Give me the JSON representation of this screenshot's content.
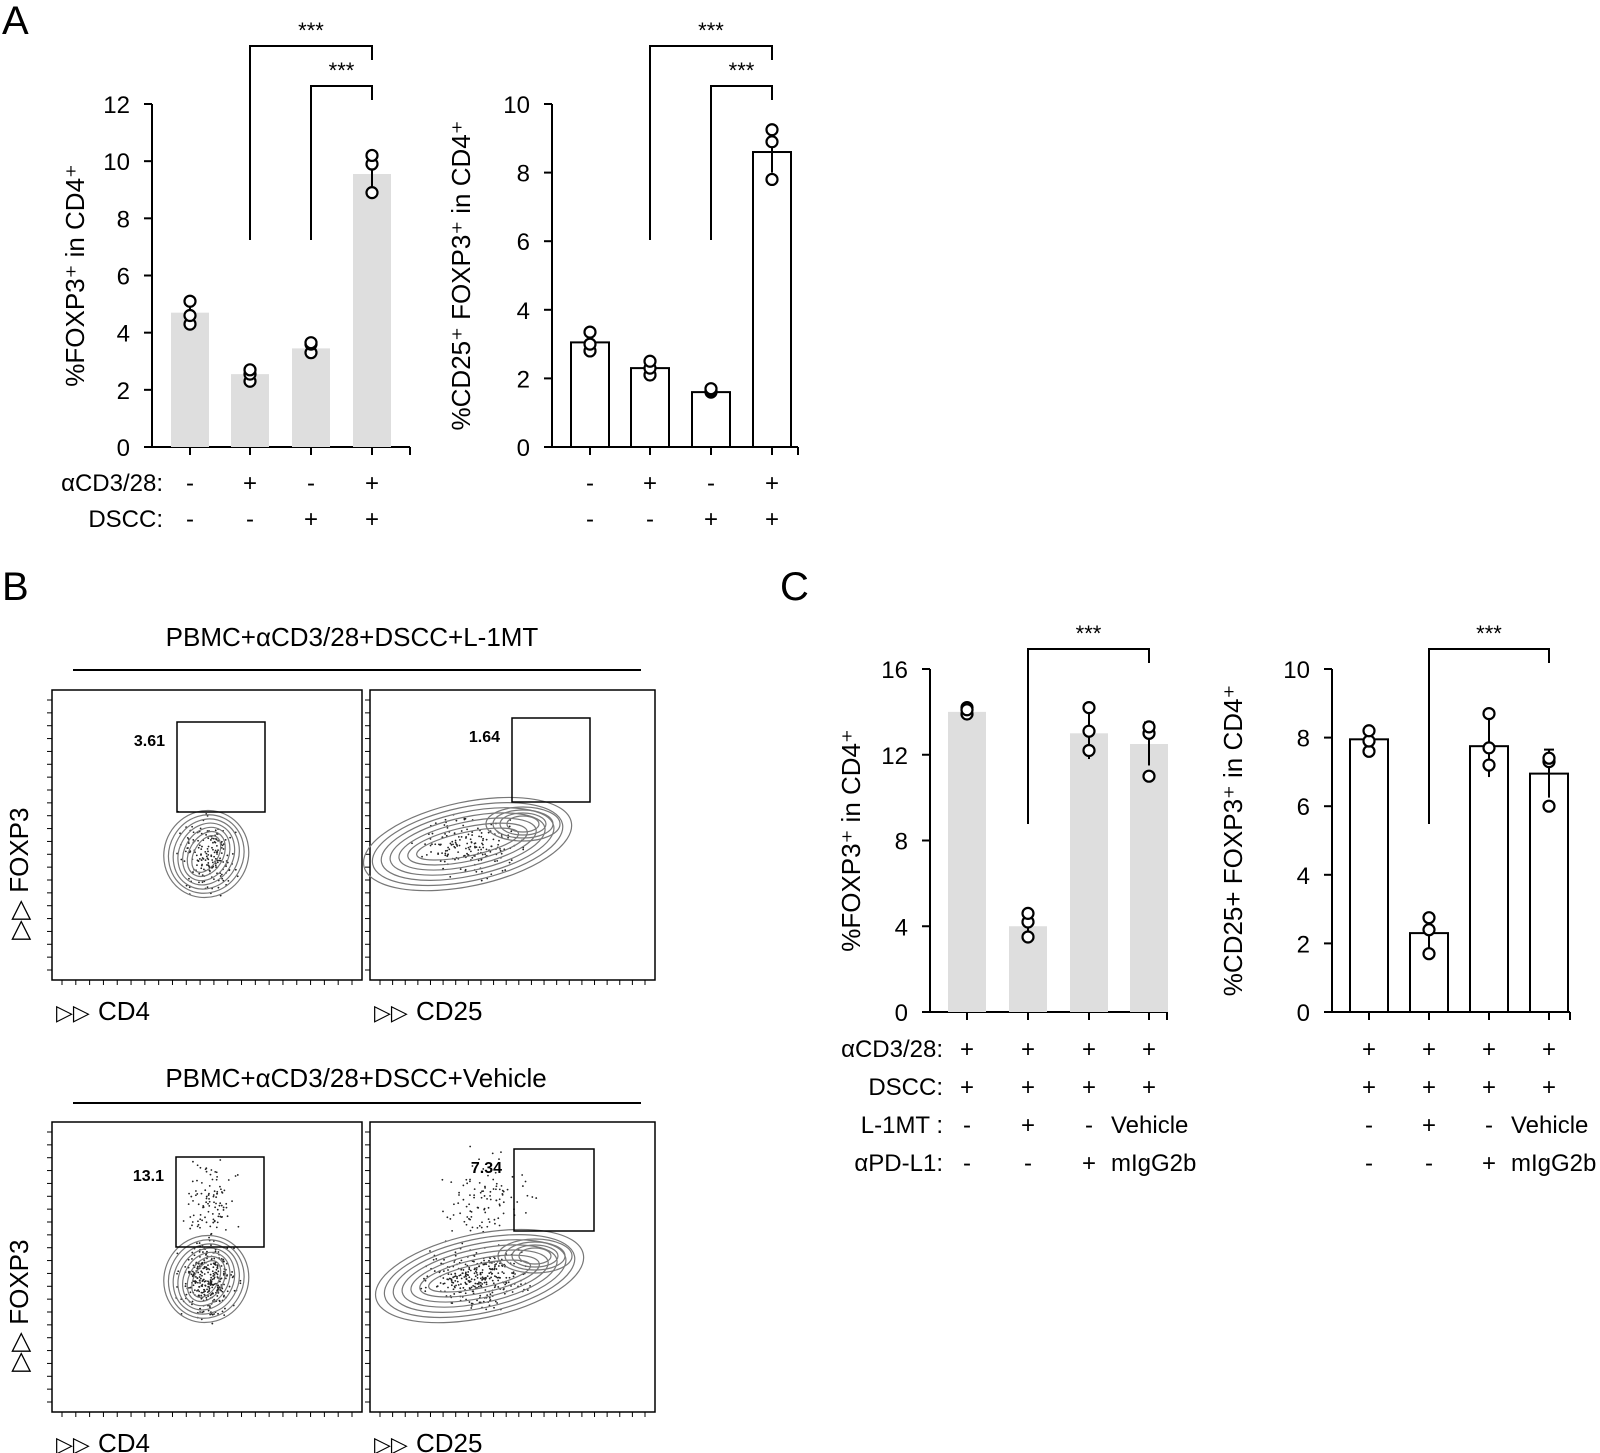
{
  "panels": {
    "A": {
      "letter": "A"
    },
    "B": {
      "letter": "B",
      "conditions": [
        {
          "title": "PBMC+αCD3/28+DSCC+L-1MT",
          "plots": [
            {
              "x_axis": "CD4",
              "y_axis": "FOXP3",
              "gate_value": "3.61"
            },
            {
              "x_axis": "CD25",
              "y_axis": "",
              "gate_value": "1.64"
            }
          ]
        },
        {
          "title": "PBMC+αCD3/28+DSCC+Vehicle",
          "plots": [
            {
              "x_axis": "CD4",
              "y_axis": "FOXP3",
              "gate_value": "13.1"
            },
            {
              "x_axis": "CD25",
              "y_axis": "",
              "gate_value": "7.34"
            }
          ]
        }
      ]
    },
    "C": {
      "letter": "C"
    }
  },
  "colors": {
    "bar_gray": "#dedede",
    "bar_white": "#ffffff",
    "stroke": "#000000"
  },
  "chart_data": [
    {
      "id": "A1",
      "panel": "A",
      "type": "bar",
      "style": "gray",
      "ylabel": "%FOXP3⁺ in CD4⁺",
      "ylim": [
        0,
        12
      ],
      "yticks": [
        0,
        2,
        4,
        6,
        8,
        10,
        12
      ],
      "values": [
        4.7,
        2.55,
        3.45,
        9.55
      ],
      "errors": [
        0.4,
        0.2,
        0.2,
        0.6
      ],
      "points": [
        [
          4.3,
          4.6,
          5.1
        ],
        [
          2.3,
          2.55,
          2.7
        ],
        [
          3.3,
          3.6,
          3.65
        ],
        [
          8.9,
          9.9,
          10.2
        ]
      ],
      "condition_rows": [
        {
          "label": "αCD3/28:",
          "values": [
            "-",
            "+",
            "-",
            "+"
          ]
        },
        {
          "label": "DSCC:",
          "values": [
            "-",
            "-",
            "+",
            "+"
          ]
        }
      ],
      "significance": [
        {
          "from": 1,
          "to": 3,
          "label": "***",
          "level": 0
        },
        {
          "from": 2,
          "to": 3,
          "label": "***",
          "level": 1
        }
      ]
    },
    {
      "id": "A2",
      "panel": "A",
      "type": "bar",
      "style": "white",
      "ylabel": "%CD25⁺ FOXP3⁺ in CD4⁺",
      "ylim": [
        0,
        10
      ],
      "yticks": [
        0,
        2,
        4,
        6,
        8,
        10
      ],
      "values": [
        3.05,
        2.3,
        1.6,
        8.6
      ],
      "errors": [
        0.3,
        0.2,
        0.05,
        0.6
      ],
      "points": [
        [
          2.8,
          3.0,
          3.35
        ],
        [
          2.1,
          2.3,
          2.5
        ],
        [
          1.6,
          1.65,
          1.7
        ],
        [
          7.8,
          8.9,
          9.25
        ]
      ],
      "condition_rows": [
        {
          "label": "",
          "values": [
            "-",
            "+",
            "-",
            "+"
          ]
        },
        {
          "label": "",
          "values": [
            "-",
            "-",
            "+",
            "+"
          ]
        }
      ],
      "significance": [
        {
          "from": 1,
          "to": 3,
          "label": "***",
          "level": 0
        },
        {
          "from": 2,
          "to": 3,
          "label": "***",
          "level": 1
        }
      ]
    },
    {
      "id": "C1",
      "panel": "C",
      "type": "bar",
      "style": "gray",
      "ylabel": "%FOXP3⁺ in CD4⁺",
      "ylim": [
        0,
        16
      ],
      "yticks": [
        0,
        4,
        8,
        12,
        16
      ],
      "values": [
        14.0,
        4.0,
        13.0,
        12.5
      ],
      "errors": [
        0.2,
        0.5,
        1.2,
        1.0
      ],
      "points": [
        [
          13.9,
          14.2,
          14.1
        ],
        [
          3.5,
          4.2,
          4.6
        ],
        [
          12.2,
          13.1,
          14.2
        ],
        [
          11.0,
          13.0,
          13.3
        ]
      ],
      "condition_rows": [
        {
          "label": "αCD3/28:",
          "values": [
            "+",
            "+",
            "+",
            "+"
          ]
        },
        {
          "label": "DSCC:",
          "values": [
            "+",
            "+",
            "+",
            "+"
          ]
        },
        {
          "label": "L-1MT :",
          "values": [
            "-",
            "+",
            "-",
            "Vehicle"
          ]
        },
        {
          "label": "αPD-L1:",
          "values": [
            "-",
            "-",
            "+",
            "mIgG2b"
          ]
        }
      ],
      "significance": [
        {
          "from": 1,
          "to": 3,
          "label": "***",
          "level": 0
        }
      ]
    },
    {
      "id": "C2",
      "panel": "C",
      "type": "bar",
      "style": "white",
      "ylabel": "%CD25+ FOXP3⁺ in CD4⁺",
      "ylim": [
        0,
        10
      ],
      "yticks": [
        0,
        2,
        4,
        6,
        8,
        10
      ],
      "values": [
        7.95,
        2.3,
        7.75,
        6.95
      ],
      "errors": [
        0.3,
        0.5,
        0.9,
        0.7
      ],
      "points": [
        [
          7.6,
          7.9,
          8.2
        ],
        [
          1.7,
          2.4,
          2.75
        ],
        [
          7.2,
          7.7,
          8.7
        ],
        [
          6.0,
          7.3,
          7.4
        ]
      ],
      "condition_rows": [
        {
          "label": "",
          "values": [
            "+",
            "+",
            "+",
            "+"
          ]
        },
        {
          "label": "",
          "values": [
            "+",
            "+",
            "+",
            "+"
          ]
        },
        {
          "label": "",
          "values": [
            "-",
            "+",
            "-",
            "Vehicle"
          ]
        },
        {
          "label": "",
          "values": [
            "-",
            "-",
            "+",
            "mIgG2b"
          ]
        }
      ],
      "significance": [
        {
          "from": 1,
          "to": 3,
          "label": "***",
          "level": 0
        }
      ]
    }
  ]
}
